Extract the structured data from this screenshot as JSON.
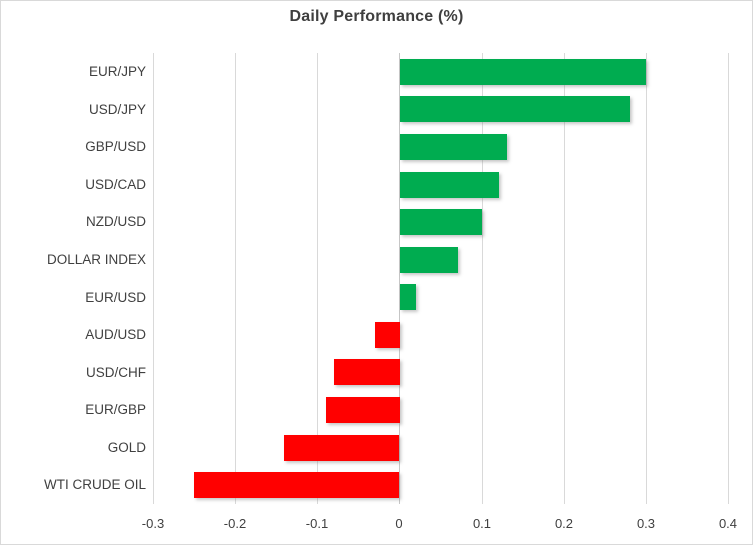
{
  "chart_data": {
    "type": "bar",
    "orientation": "horizontal",
    "title": "Daily Performance (%)",
    "categories": [
      "EUR/JPY",
      "USD/JPY",
      "GBP/USD",
      "USD/CAD",
      "NZD/USD",
      "DOLLAR INDEX",
      "EUR/USD",
      "AUD/USD",
      "USD/CHF",
      "EUR/GBP",
      "GOLD",
      "WTI CRUDE OIL"
    ],
    "values": [
      0.3,
      0.28,
      0.13,
      0.12,
      0.1,
      0.07,
      0.02,
      -0.03,
      -0.08,
      -0.09,
      -0.14,
      -0.25
    ],
    "xlabel": "",
    "ylabel": "",
    "xlim": [
      -0.3,
      0.4
    ],
    "xticks": [
      -0.3,
      -0.2,
      -0.1,
      0,
      0.1,
      0.2,
      0.3,
      0.4
    ],
    "xtick_labels": [
      "-0.3",
      "-0.2",
      "-0.1",
      "0",
      "0.1",
      "0.2",
      "0.3",
      "0.4"
    ],
    "grid": true,
    "legend": false,
    "colors": {
      "positive": "#00AC50",
      "negative": "#FF0000",
      "gridline": "#D9D9D9",
      "axis_line": "#C6C6C6",
      "text": "#404040",
      "border": "#D9D9D9",
      "background": "#FFFFFF"
    }
  }
}
